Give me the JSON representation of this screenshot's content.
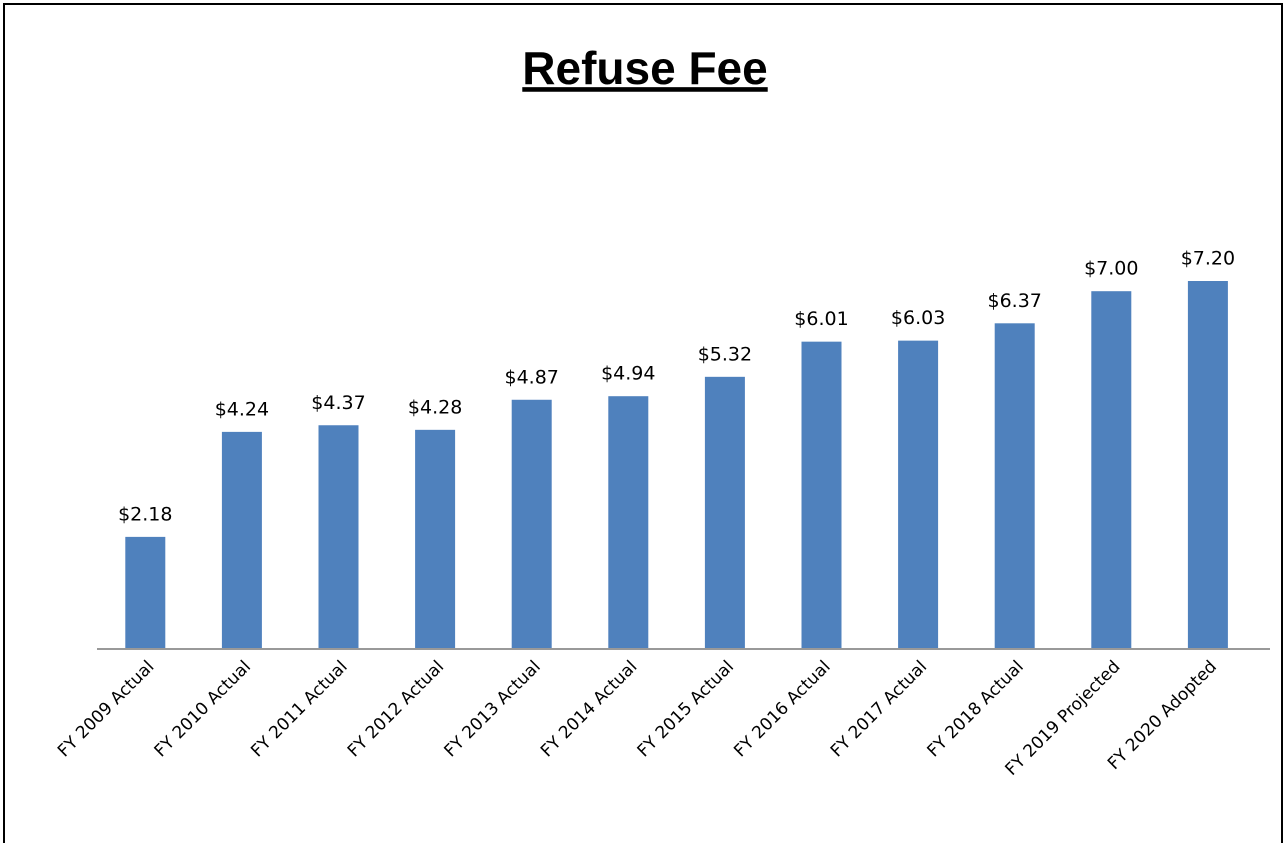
{
  "chart_data": {
    "type": "bar",
    "title": "Refuse Fee",
    "categories": [
      "FY 2009 Actual",
      "FY 2010 Actual",
      "FY 2011 Actual",
      "FY 2012 Actual",
      "FY 2013 Actual",
      "FY 2014 Actual",
      "FY 2015 Actual",
      "FY 2016 Actual",
      "FY 2017 Actual",
      "FY 2018 Actual",
      "FY 2019 Projected",
      "FY 2020 Adopted"
    ],
    "values": [
      2.18,
      4.24,
      4.37,
      4.28,
      4.87,
      4.94,
      5.32,
      6.01,
      6.03,
      6.37,
      7.0,
      7.2
    ],
    "value_labels": [
      "$2.18",
      "$4.24",
      "$4.37",
      "$4.28",
      "$4.87",
      "$4.94",
      "$5.32",
      "$6.01",
      "$6.03",
      "$6.37",
      "$7.00",
      "$7.20"
    ],
    "color": "#4f81bd"
  }
}
